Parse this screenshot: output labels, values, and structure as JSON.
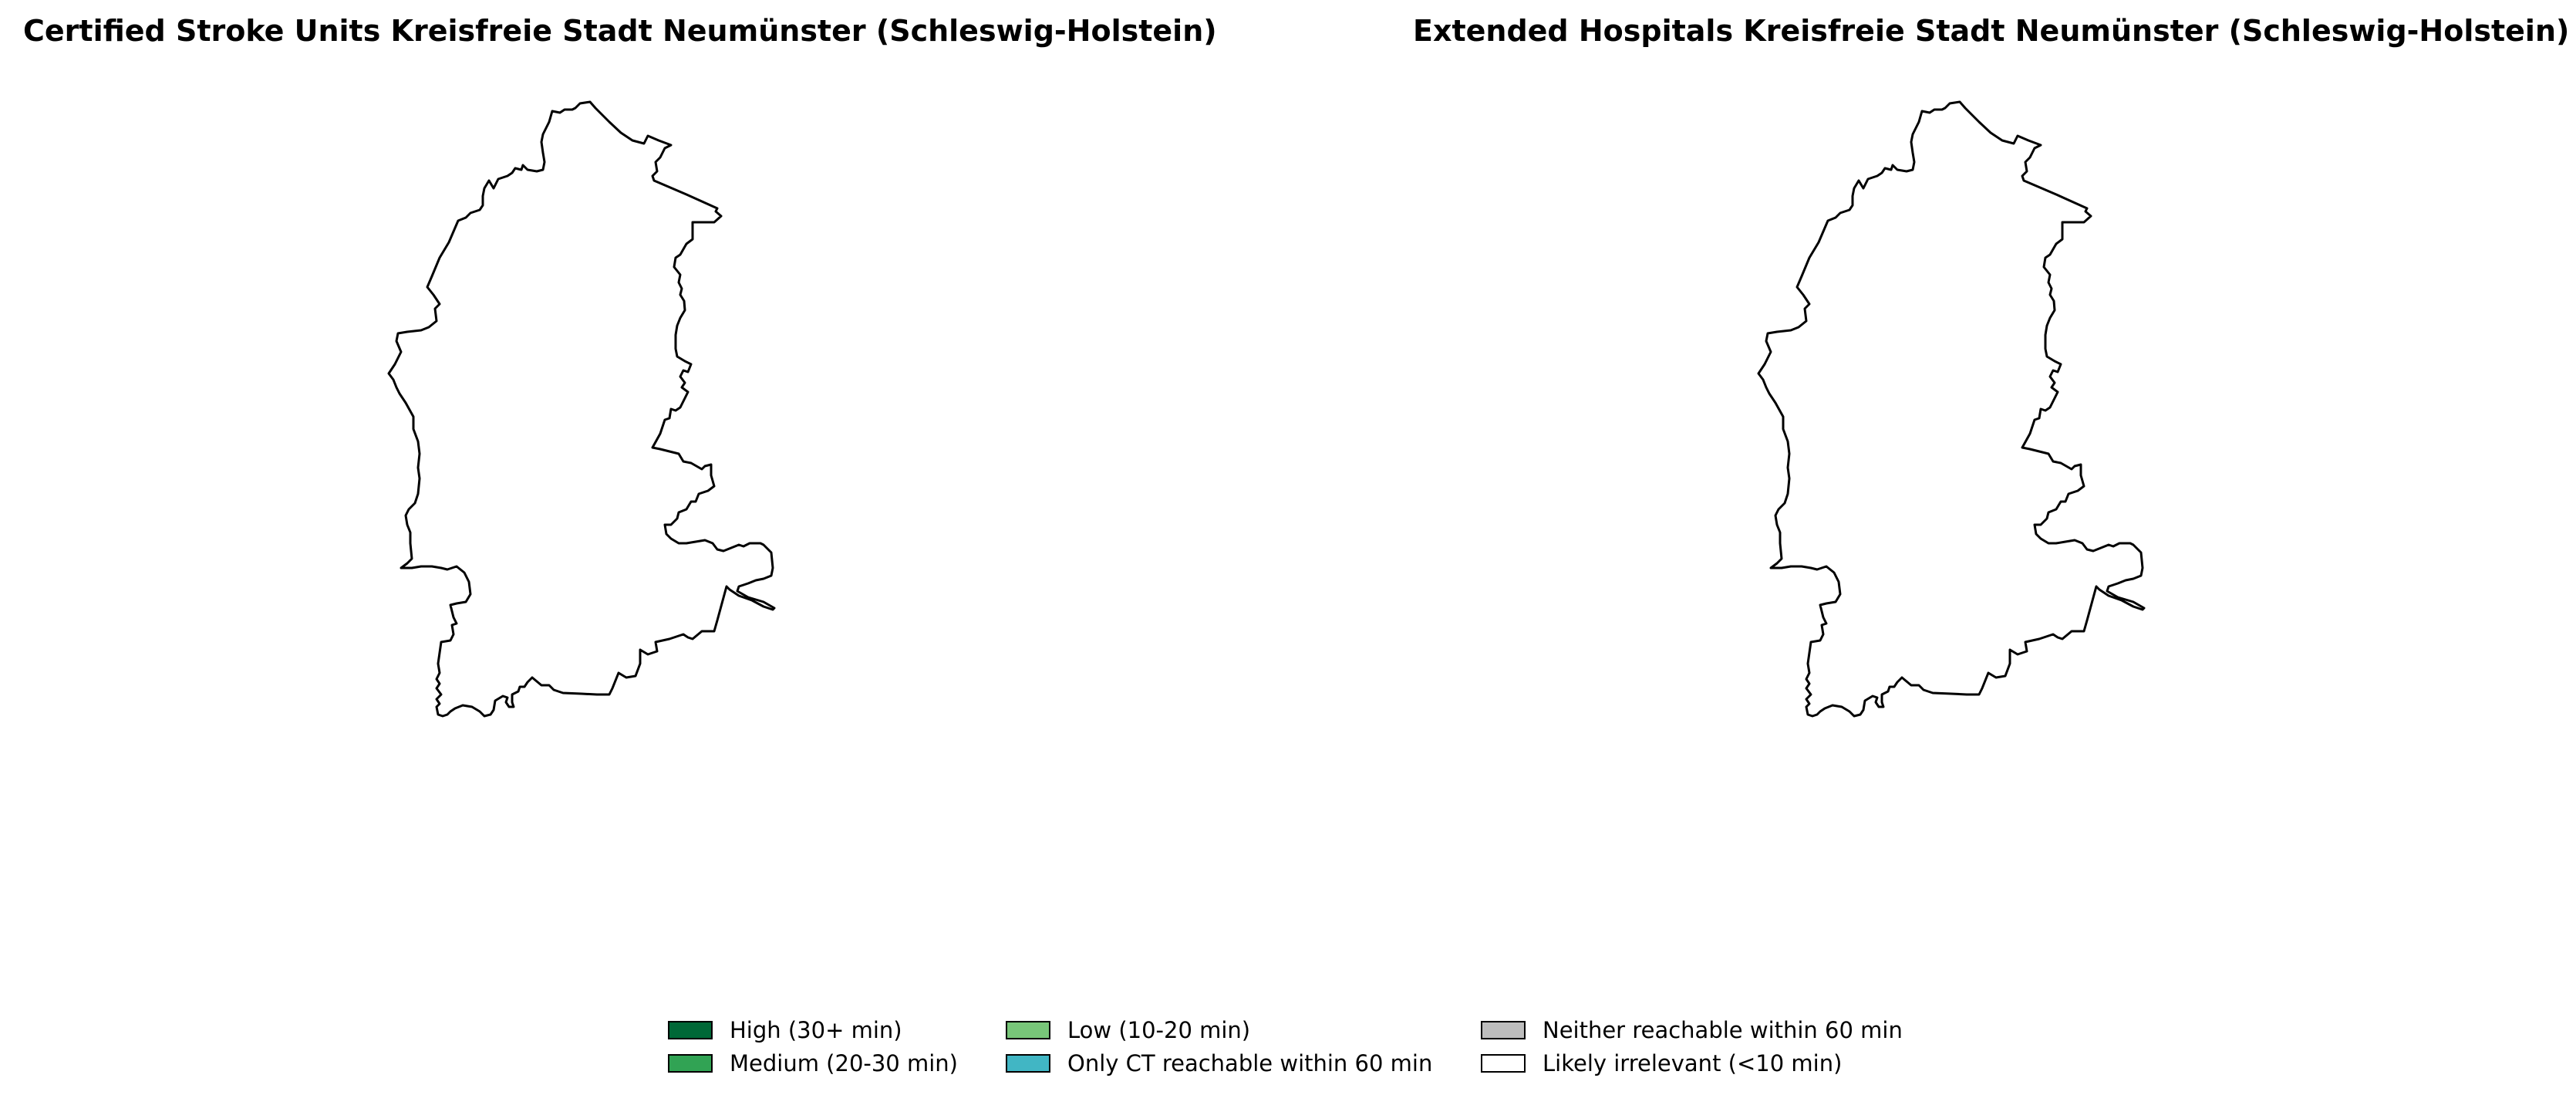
{
  "maps": [
    {
      "title": "Certified Stroke Units Kreisfreie Stadt Neumünster (Schleswig-Holstein)"
    },
    {
      "title": "Extended Hospitals Kreisfreie Stadt Neumünster (Schleswig-Holstein)"
    }
  ],
  "legend": [
    {
      "label": "High (30+ min)",
      "color": "#006837"
    },
    {
      "label": "Low (10-20 min)",
      "color": "#78c679"
    },
    {
      "label": "Neither reachable within 60 min",
      "color": "#bdbdbd"
    },
    {
      "label": "Medium (20-30 min)",
      "color": "#31a354"
    },
    {
      "label": "Only CT reachable within 60 min",
      "color": "#41b6c4"
    },
    {
      "label": "Likely irrelevant (<10 min)",
      "color": "#ffffff"
    }
  ]
}
